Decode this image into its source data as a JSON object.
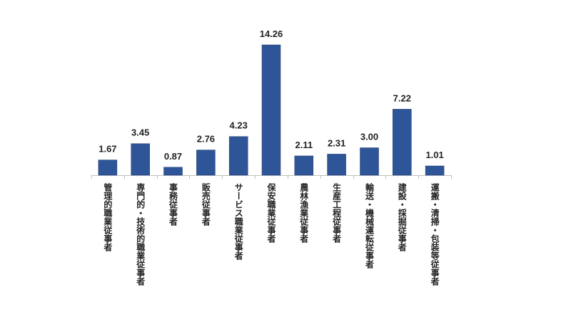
{
  "chart_data": {
    "type": "bar",
    "categories": [
      "管理的職業従事者",
      "専門的・技術的職業従事者",
      "事務従事者",
      "販売従事者",
      "サービス職業従事者",
      "保安職業従事者",
      "農林漁業従事者",
      "生産工程従事者",
      "輸送・機械運転従事者",
      "建設・採掘従事者",
      "運搬・清掃・包装等従事者"
    ],
    "values": [
      1.67,
      3.45,
      0.87,
      2.76,
      4.23,
      14.26,
      2.11,
      2.31,
      3.0,
      7.22,
      1.01
    ],
    "value_labels": [
      "1.67",
      "3.45",
      "0.87",
      "2.76",
      "4.23",
      "14.26",
      "2.11",
      "2.31",
      "3.00",
      "7.22",
      "1.01"
    ],
    "title": "",
    "xlabel": "",
    "ylabel": "",
    "ylim": [
      0,
      14.26
    ],
    "grid": false,
    "legend": "none",
    "bar_color": "#2e5597",
    "axis_color": "#bfbfbf"
  }
}
